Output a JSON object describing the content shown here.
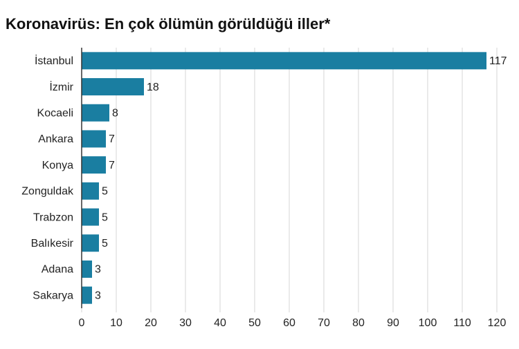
{
  "chart_data": {
    "type": "barh",
    "title": "Koronavirüs: En çok ölümün görüldüğü iller*",
    "categories": [
      "İstanbul",
      "İzmir",
      "Kocaeli",
      "Ankara",
      "Konya",
      "Zonguldak",
      "Trabzon",
      "Balıkesir",
      "Adana",
      "Sakarya"
    ],
    "values": [
      117,
      18,
      8,
      7,
      7,
      5,
      5,
      5,
      3,
      3
    ],
    "color": "#1a7ea1",
    "xlim": [
      0,
      120
    ],
    "xticks": [
      0,
      10,
      20,
      30,
      40,
      50,
      60,
      70,
      80,
      90,
      100,
      110,
      120
    ],
    "grid": true
  }
}
